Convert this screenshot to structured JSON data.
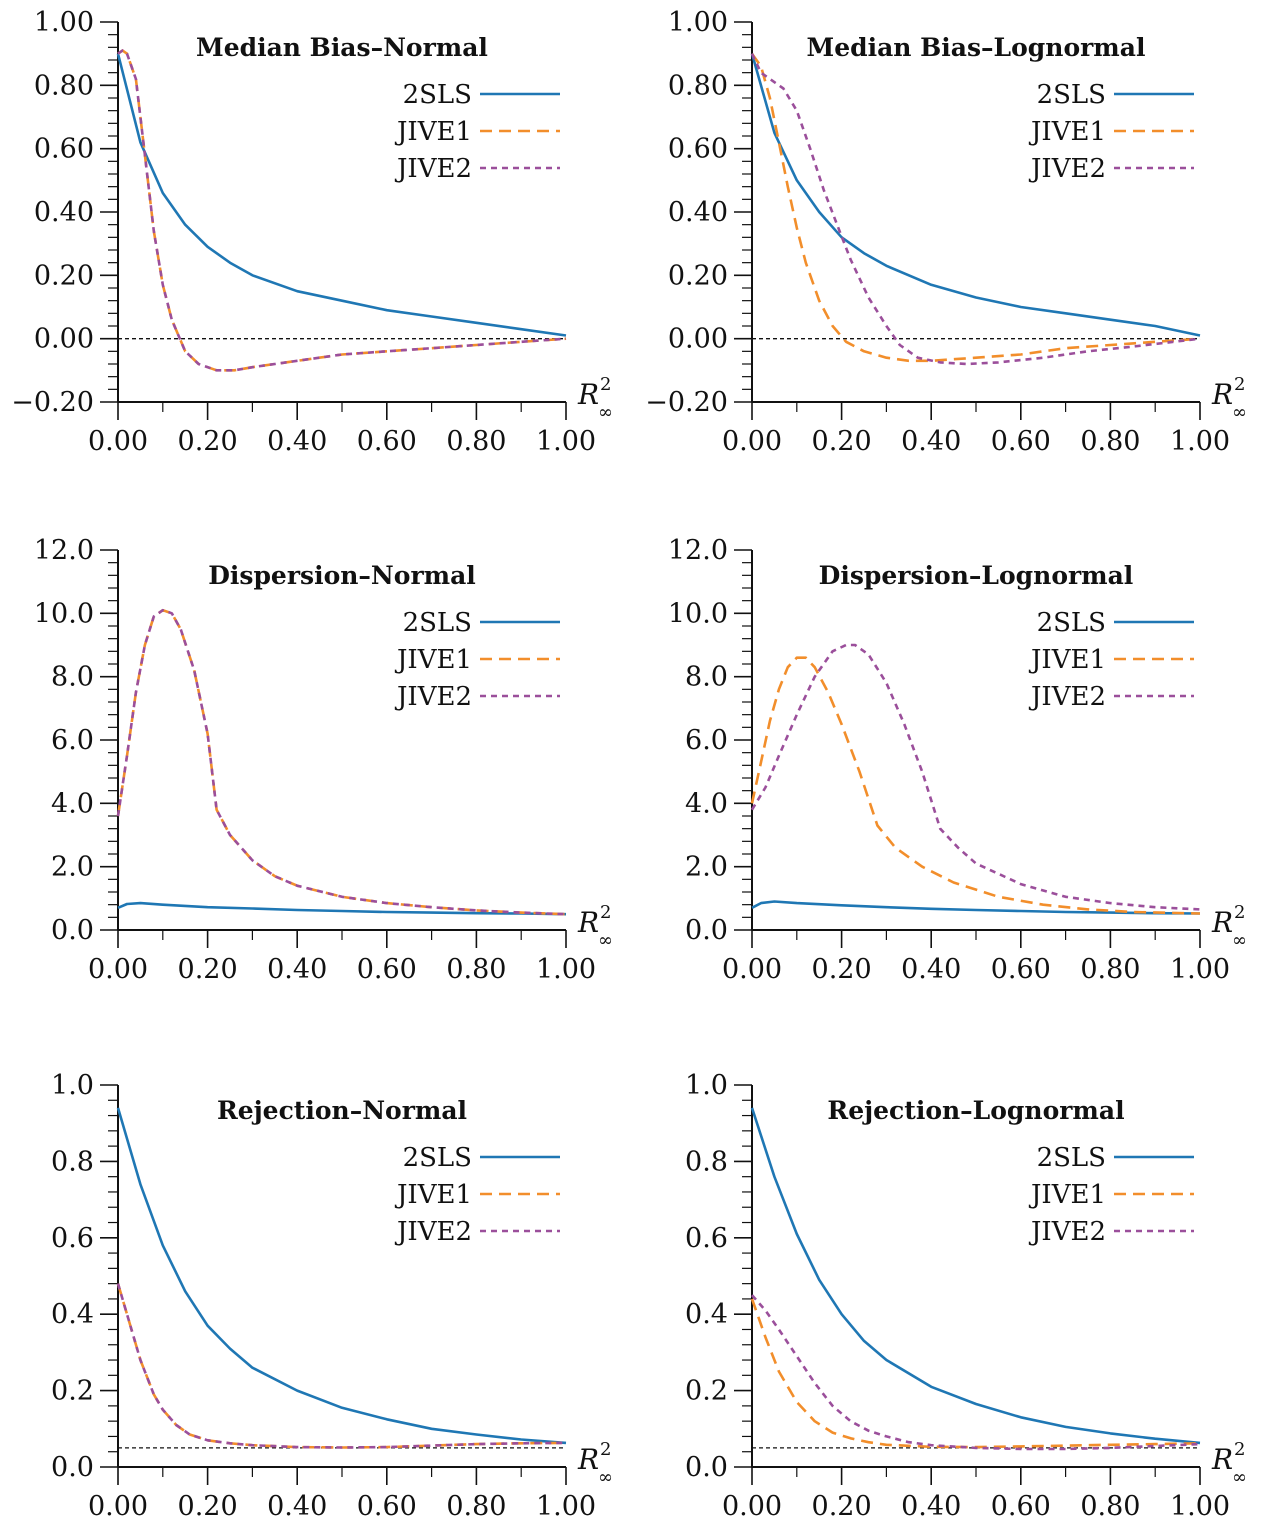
{
  "colors": {
    "2SLS": "#1f77b4",
    "JIVE1": "#f28e2b",
    "JIVE2": "#9b4f9b",
    "axis": "#111111",
    "reference": "#111111"
  },
  "chart_data": [
    {
      "type": "line",
      "title": "Median Bias–Normal",
      "xlabel": {
        "base": "R",
        "sup": "2",
        "sub": "∞"
      },
      "xlim": [
        0,
        1
      ],
      "ylim": [
        -0.2,
        1.0
      ],
      "xticks": [
        0,
        0.2,
        0.4,
        0.6,
        0.8,
        1.0
      ],
      "xtick_labels": [
        "0.00",
        "0.20",
        "0.40",
        "0.60",
        "0.80",
        "1.00"
      ],
      "yticks": [
        -0.2,
        0,
        0.2,
        0.4,
        0.6,
        0.8,
        1.0
      ],
      "ytick_labels": [
        "−0.20",
        "0.00",
        "0.20",
        "0.40",
        "0.60",
        "0.80",
        "1.00"
      ],
      "reference_line": 0.0,
      "legend_position": "top-right",
      "series": [
        {
          "name": "2SLS",
          "style": "solid",
          "x": [
            0,
            0.05,
            0.1,
            0.15,
            0.2,
            0.25,
            0.3,
            0.4,
            0.5,
            0.6,
            0.7,
            0.8,
            0.9,
            1.0
          ],
          "y": [
            0.9,
            0.62,
            0.46,
            0.36,
            0.29,
            0.24,
            0.2,
            0.15,
            0.12,
            0.09,
            0.07,
            0.05,
            0.03,
            0.01
          ]
        },
        {
          "name": "JIVE1",
          "style": "dashed",
          "x": [
            0,
            0.01,
            0.02,
            0.04,
            0.06,
            0.08,
            0.1,
            0.12,
            0.15,
            0.18,
            0.22,
            0.26,
            0.3,
            0.4,
            0.5,
            0.6,
            0.7,
            0.8,
            0.9,
            1.0
          ],
          "y": [
            0.9,
            0.91,
            0.9,
            0.82,
            0.58,
            0.34,
            0.17,
            0.06,
            -0.04,
            -0.08,
            -0.1,
            -0.1,
            -0.09,
            -0.07,
            -0.05,
            -0.04,
            -0.03,
            -0.02,
            -0.01,
            0.0
          ]
        },
        {
          "name": "JIVE2",
          "style": "dotted",
          "x": [
            0,
            0.01,
            0.02,
            0.04,
            0.06,
            0.08,
            0.1,
            0.12,
            0.15,
            0.18,
            0.22,
            0.26,
            0.3,
            0.4,
            0.5,
            0.6,
            0.7,
            0.8,
            0.9,
            1.0
          ],
          "y": [
            0.9,
            0.91,
            0.9,
            0.82,
            0.58,
            0.34,
            0.17,
            0.06,
            -0.04,
            -0.08,
            -0.1,
            -0.1,
            -0.09,
            -0.07,
            -0.05,
            -0.04,
            -0.03,
            -0.02,
            -0.01,
            0.0
          ]
        }
      ]
    },
    {
      "type": "line",
      "title": "Median Bias–Lognormal",
      "xlabel": {
        "base": "R",
        "sup": "2",
        "sub": "∞"
      },
      "xlim": [
        0,
        1
      ],
      "ylim": [
        -0.2,
        1.0
      ],
      "xticks": [
        0,
        0.2,
        0.4,
        0.6,
        0.8,
        1.0
      ],
      "xtick_labels": [
        "0.00",
        "0.20",
        "0.40",
        "0.60",
        "0.80",
        "1.00"
      ],
      "yticks": [
        -0.2,
        0,
        0.2,
        0.4,
        0.6,
        0.8,
        1.0
      ],
      "ytick_labels": [
        "−0.20",
        "0.00",
        "0.20",
        "0.40",
        "0.60",
        "0.80",
        "1.00"
      ],
      "reference_line": 0.0,
      "legend_position": "top-right",
      "series": [
        {
          "name": "2SLS",
          "style": "solid",
          "x": [
            0,
            0.05,
            0.1,
            0.15,
            0.2,
            0.25,
            0.3,
            0.4,
            0.5,
            0.6,
            0.7,
            0.8,
            0.9,
            1.0
          ],
          "y": [
            0.9,
            0.65,
            0.5,
            0.4,
            0.32,
            0.27,
            0.23,
            0.17,
            0.13,
            0.1,
            0.08,
            0.06,
            0.04,
            0.01
          ]
        },
        {
          "name": "JIVE1",
          "style": "dashed",
          "x": [
            0,
            0.02,
            0.04,
            0.06,
            0.08,
            0.1,
            0.12,
            0.15,
            0.18,
            0.21,
            0.25,
            0.3,
            0.35,
            0.4,
            0.5,
            0.6,
            0.7,
            0.8,
            0.9,
            1.0
          ],
          "y": [
            0.9,
            0.86,
            0.76,
            0.62,
            0.48,
            0.35,
            0.24,
            0.12,
            0.04,
            -0.01,
            -0.04,
            -0.06,
            -0.07,
            -0.07,
            -0.06,
            -0.05,
            -0.03,
            -0.02,
            -0.01,
            0.0
          ]
        },
        {
          "name": "JIVE2",
          "style": "dotted",
          "x": [
            0,
            0.02,
            0.04,
            0.07,
            0.1,
            0.13,
            0.16,
            0.19,
            0.22,
            0.26,
            0.3,
            0.33,
            0.37,
            0.42,
            0.48,
            0.55,
            0.65,
            0.75,
            0.85,
            1.0
          ],
          "y": [
            0.9,
            0.84,
            0.82,
            0.79,
            0.72,
            0.6,
            0.47,
            0.36,
            0.25,
            0.13,
            0.04,
            -0.02,
            -0.06,
            -0.075,
            -0.08,
            -0.075,
            -0.06,
            -0.04,
            -0.025,
            0.0
          ]
        }
      ]
    },
    {
      "type": "line",
      "title": "Dispersion–Normal",
      "xlabel": {
        "base": "R",
        "sup": "2",
        "sub": "∞"
      },
      "xlim": [
        0,
        1
      ],
      "ylim": [
        0,
        12
      ],
      "xticks": [
        0,
        0.2,
        0.4,
        0.6,
        0.8,
        1.0
      ],
      "xtick_labels": [
        "0.00",
        "0.20",
        "0.40",
        "0.60",
        "0.80",
        "1.00"
      ],
      "yticks": [
        0,
        2,
        4,
        6,
        8,
        10,
        12
      ],
      "ytick_labels": [
        "0.0",
        "2.0",
        "4.0",
        "6.0",
        "8.0",
        "10.0",
        "12.0"
      ],
      "reference_line": null,
      "legend_position": "top-right",
      "series": [
        {
          "name": "2SLS",
          "style": "solid",
          "x": [
            0,
            0.02,
            0.05,
            0.1,
            0.2,
            0.3,
            0.4,
            0.5,
            0.6,
            0.7,
            0.8,
            0.9,
            1.0
          ],
          "y": [
            0.7,
            0.82,
            0.85,
            0.8,
            0.72,
            0.68,
            0.63,
            0.6,
            0.57,
            0.55,
            0.53,
            0.52,
            0.5
          ]
        },
        {
          "name": "JIVE1",
          "style": "dashed",
          "x": [
            0,
            0.02,
            0.04,
            0.06,
            0.08,
            0.1,
            0.12,
            0.14,
            0.17,
            0.2,
            0.22,
            0.25,
            0.3,
            0.35,
            0.4,
            0.5,
            0.6,
            0.7,
            0.8,
            0.9,
            1.0
          ],
          "y": [
            3.6,
            5.5,
            7.5,
            9.0,
            9.9,
            10.1,
            10.0,
            9.5,
            8.2,
            6.2,
            3.8,
            3.0,
            2.2,
            1.7,
            1.4,
            1.05,
            0.85,
            0.72,
            0.62,
            0.55,
            0.5
          ]
        },
        {
          "name": "JIVE2",
          "style": "dotted",
          "x": [
            0,
            0.02,
            0.04,
            0.06,
            0.08,
            0.1,
            0.12,
            0.14,
            0.17,
            0.2,
            0.22,
            0.25,
            0.3,
            0.35,
            0.4,
            0.5,
            0.6,
            0.7,
            0.8,
            0.9,
            1.0
          ],
          "y": [
            3.6,
            5.5,
            7.5,
            9.0,
            9.9,
            10.1,
            10.0,
            9.5,
            8.2,
            6.2,
            3.8,
            3.0,
            2.2,
            1.7,
            1.4,
            1.05,
            0.85,
            0.72,
            0.62,
            0.55,
            0.5
          ]
        }
      ]
    },
    {
      "type": "line",
      "title": "Dispersion–Lognormal",
      "xlabel": {
        "base": "R",
        "sup": "2",
        "sub": "∞"
      },
      "xlim": [
        0,
        1
      ],
      "ylim": [
        0,
        12
      ],
      "xticks": [
        0,
        0.2,
        0.4,
        0.6,
        0.8,
        1.0
      ],
      "xtick_labels": [
        "0.00",
        "0.20",
        "0.40",
        "0.60",
        "0.80",
        "1.00"
      ],
      "yticks": [
        0,
        2,
        4,
        6,
        8,
        10,
        12
      ],
      "ytick_labels": [
        "0.0",
        "2.0",
        "4.0",
        "6.0",
        "8.0",
        "10.0",
        "12.0"
      ],
      "reference_line": null,
      "legend_position": "top-right",
      "series": [
        {
          "name": "2SLS",
          "style": "solid",
          "x": [
            0,
            0.02,
            0.05,
            0.1,
            0.2,
            0.3,
            0.4,
            0.5,
            0.6,
            0.7,
            0.8,
            0.9,
            1.0
          ],
          "y": [
            0.7,
            0.85,
            0.9,
            0.85,
            0.78,
            0.72,
            0.67,
            0.63,
            0.6,
            0.57,
            0.55,
            0.53,
            0.52
          ]
        },
        {
          "name": "JIVE1",
          "style": "dashed",
          "x": [
            0,
            0.02,
            0.04,
            0.06,
            0.08,
            0.1,
            0.12,
            0.14,
            0.17,
            0.2,
            0.24,
            0.28,
            0.32,
            0.38,
            0.45,
            0.55,
            0.65,
            0.75,
            0.85,
            1.0
          ],
          "y": [
            4.0,
            5.3,
            6.6,
            7.6,
            8.3,
            8.6,
            8.6,
            8.3,
            7.5,
            6.5,
            5.0,
            3.3,
            2.6,
            2.0,
            1.5,
            1.05,
            0.8,
            0.65,
            0.57,
            0.52
          ]
        },
        {
          "name": "JIVE2",
          "style": "dotted",
          "x": [
            0,
            0.03,
            0.06,
            0.1,
            0.14,
            0.18,
            0.21,
            0.23,
            0.26,
            0.3,
            0.34,
            0.38,
            0.42,
            0.46,
            0.5,
            0.6,
            0.7,
            0.8,
            0.9,
            1.0
          ],
          "y": [
            3.8,
            4.5,
            5.5,
            6.8,
            8.0,
            8.8,
            9.0,
            9.0,
            8.7,
            7.8,
            6.5,
            5.0,
            3.2,
            2.6,
            2.1,
            1.45,
            1.05,
            0.85,
            0.72,
            0.65
          ]
        }
      ]
    },
    {
      "type": "line",
      "title": "Rejection–Normal",
      "xlabel": {
        "base": "R",
        "sup": "2",
        "sub": "∞"
      },
      "xlim": [
        0,
        1
      ],
      "ylim": [
        0,
        1
      ],
      "xticks": [
        0,
        0.2,
        0.4,
        0.6,
        0.8,
        1.0
      ],
      "xtick_labels": [
        "0.00",
        "0.20",
        "0.40",
        "0.60",
        "0.80",
        "1.00"
      ],
      "yticks": [
        0,
        0.2,
        0.4,
        0.6,
        0.8,
        1.0
      ],
      "ytick_labels": [
        "0.0",
        "0.2",
        "0.4",
        "0.6",
        "0.8",
        "1.0"
      ],
      "reference_line": 0.05,
      "legend_position": "top-right",
      "series": [
        {
          "name": "2SLS",
          "style": "solid",
          "x": [
            0,
            0.05,
            0.1,
            0.15,
            0.2,
            0.25,
            0.3,
            0.4,
            0.5,
            0.6,
            0.7,
            0.8,
            0.9,
            1.0
          ],
          "y": [
            0.94,
            0.74,
            0.58,
            0.46,
            0.37,
            0.31,
            0.26,
            0.2,
            0.155,
            0.125,
            0.1,
            0.085,
            0.072,
            0.063
          ]
        },
        {
          "name": "JIVE1",
          "style": "dashed",
          "x": [
            0,
            0.02,
            0.05,
            0.08,
            0.1,
            0.13,
            0.16,
            0.2,
            0.25,
            0.3,
            0.4,
            0.5,
            0.6,
            0.7,
            0.8,
            0.9,
            1.0
          ],
          "y": [
            0.48,
            0.4,
            0.28,
            0.19,
            0.15,
            0.11,
            0.085,
            0.07,
            0.062,
            0.057,
            0.052,
            0.051,
            0.052,
            0.056,
            0.06,
            0.062,
            0.063
          ]
        },
        {
          "name": "JIVE2",
          "style": "dotted",
          "x": [
            0,
            0.02,
            0.05,
            0.08,
            0.1,
            0.13,
            0.16,
            0.2,
            0.25,
            0.3,
            0.4,
            0.5,
            0.6,
            0.7,
            0.8,
            0.9,
            1.0
          ],
          "y": [
            0.48,
            0.4,
            0.28,
            0.19,
            0.15,
            0.11,
            0.085,
            0.07,
            0.062,
            0.057,
            0.052,
            0.051,
            0.052,
            0.056,
            0.06,
            0.062,
            0.063
          ]
        }
      ]
    },
    {
      "type": "line",
      "title": "Rejection–Lognormal",
      "xlabel": {
        "base": "R",
        "sup": "2",
        "sub": "∞"
      },
      "xlim": [
        0,
        1
      ],
      "ylim": [
        0,
        1
      ],
      "xticks": [
        0,
        0.2,
        0.4,
        0.6,
        0.8,
        1.0
      ],
      "xtick_labels": [
        "0.00",
        "0.20",
        "0.40",
        "0.60",
        "0.80",
        "1.00"
      ],
      "yticks": [
        0,
        0.2,
        0.4,
        0.6,
        0.8,
        1.0
      ],
      "ytick_labels": [
        "0.0",
        "0.2",
        "0.4",
        "0.6",
        "0.8",
        "1.0"
      ],
      "reference_line": 0.05,
      "legend_position": "top-right",
      "series": [
        {
          "name": "2SLS",
          "style": "solid",
          "x": [
            0,
            0.05,
            0.1,
            0.15,
            0.2,
            0.25,
            0.3,
            0.4,
            0.5,
            0.6,
            0.7,
            0.8,
            0.9,
            1.0
          ],
          "y": [
            0.94,
            0.76,
            0.61,
            0.49,
            0.4,
            0.33,
            0.28,
            0.21,
            0.165,
            0.13,
            0.105,
            0.088,
            0.074,
            0.063
          ]
        },
        {
          "name": "JIVE1",
          "style": "dashed",
          "x": [
            0,
            0.03,
            0.06,
            0.1,
            0.14,
            0.18,
            0.22,
            0.26,
            0.3,
            0.4,
            0.5,
            0.6,
            0.7,
            0.8,
            0.9,
            1.0
          ],
          "y": [
            0.44,
            0.34,
            0.25,
            0.17,
            0.12,
            0.09,
            0.075,
            0.065,
            0.058,
            0.053,
            0.052,
            0.054,
            0.056,
            0.058,
            0.06,
            0.062
          ]
        },
        {
          "name": "JIVE2",
          "style": "dotted",
          "x": [
            0,
            0.03,
            0.06,
            0.1,
            0.14,
            0.18,
            0.22,
            0.26,
            0.3,
            0.35,
            0.4,
            0.5,
            0.6,
            0.7,
            0.8,
            0.9,
            1.0
          ],
          "y": [
            0.45,
            0.41,
            0.36,
            0.29,
            0.22,
            0.16,
            0.12,
            0.095,
            0.08,
            0.065,
            0.057,
            0.05,
            0.047,
            0.047,
            0.05,
            0.055,
            0.06
          ]
        }
      ]
    }
  ]
}
